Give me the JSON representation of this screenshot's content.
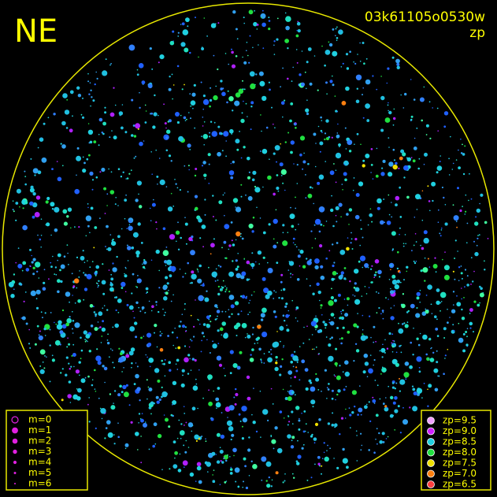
{
  "header": {
    "corner": "NE",
    "frame": "03k61105o0530w",
    "mode": "zp"
  },
  "magnitude_legend": {
    "items": [
      "m=0",
      "m=1",
      "m=2",
      "m=3",
      "m=4",
      "m=5",
      "m=6"
    ]
  },
  "zp_legend": {
    "items": [
      {
        "label": "zp=9.5",
        "color": "#f0a0ff"
      },
      {
        "label": "zp=9.0",
        "color": "#d020ff"
      },
      {
        "label": "zp=8.5",
        "color": "#20d0e0"
      },
      {
        "label": "zp=8.0",
        "color": "#20e040"
      },
      {
        "label": "zp=7.5",
        "color": "#f0e000"
      },
      {
        "label": "zp=7.0",
        "color": "#ff8010"
      },
      {
        "label": "zp=6.5",
        "color": "#ff4040"
      }
    ]
  }
}
